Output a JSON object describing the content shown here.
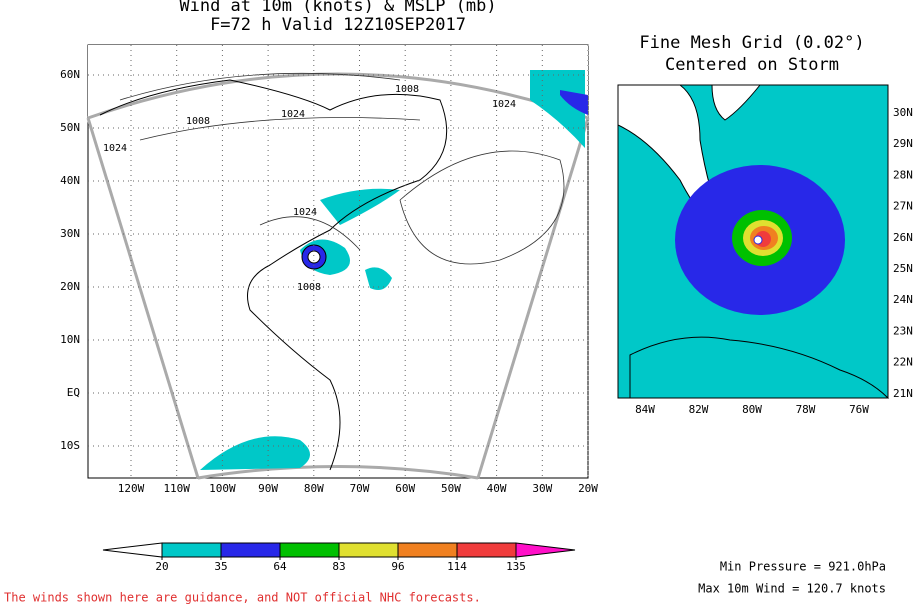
{
  "left_map": {
    "title": [
      "Wind at 10m (knots) & MSLP (mb)",
      "F=72 h Valid 12Z10SEP2017"
    ],
    "lat_labels": [
      "60N",
      "50N",
      "40N",
      "30N",
      "20N",
      "10N",
      "EQ",
      "10S"
    ],
    "lon_labels": [
      "120W",
      "110W",
      "100W",
      "90W",
      "80W",
      "70W",
      "60W",
      "50W",
      "40W",
      "30W",
      "20W"
    ],
    "contour_labels": [
      "1008",
      "1024",
      "1008",
      "1024",
      "1024",
      "1024",
      "1008"
    ]
  },
  "right_map": {
    "title": [
      "Fine Mesh Grid (0.02°)",
      "Centered on Storm"
    ],
    "lat_labels": [
      "30N",
      "29N",
      "28N",
      "27N",
      "26N",
      "25N",
      "24N",
      "23N",
      "22N",
      "21N"
    ],
    "lon_labels": [
      "84W",
      "82W",
      "80W",
      "78W",
      "76W"
    ]
  },
  "colorbar": {
    "ticks": [
      20,
      35,
      64,
      83,
      96,
      114,
      135
    ],
    "colors": [
      "#ffffff",
      "#00c8c8",
      "#2828e8",
      "#00c000",
      "#e0e030",
      "#f08020",
      "#f03c3c",
      "#ff10c8"
    ]
  },
  "stats": [
    "Min Pressure = 921.0hPa",
    "Max 10m Wind = 120.7 knots"
  ],
  "disclaimer": "The winds shown here are guidance, and NOT official NHC forecasts."
}
